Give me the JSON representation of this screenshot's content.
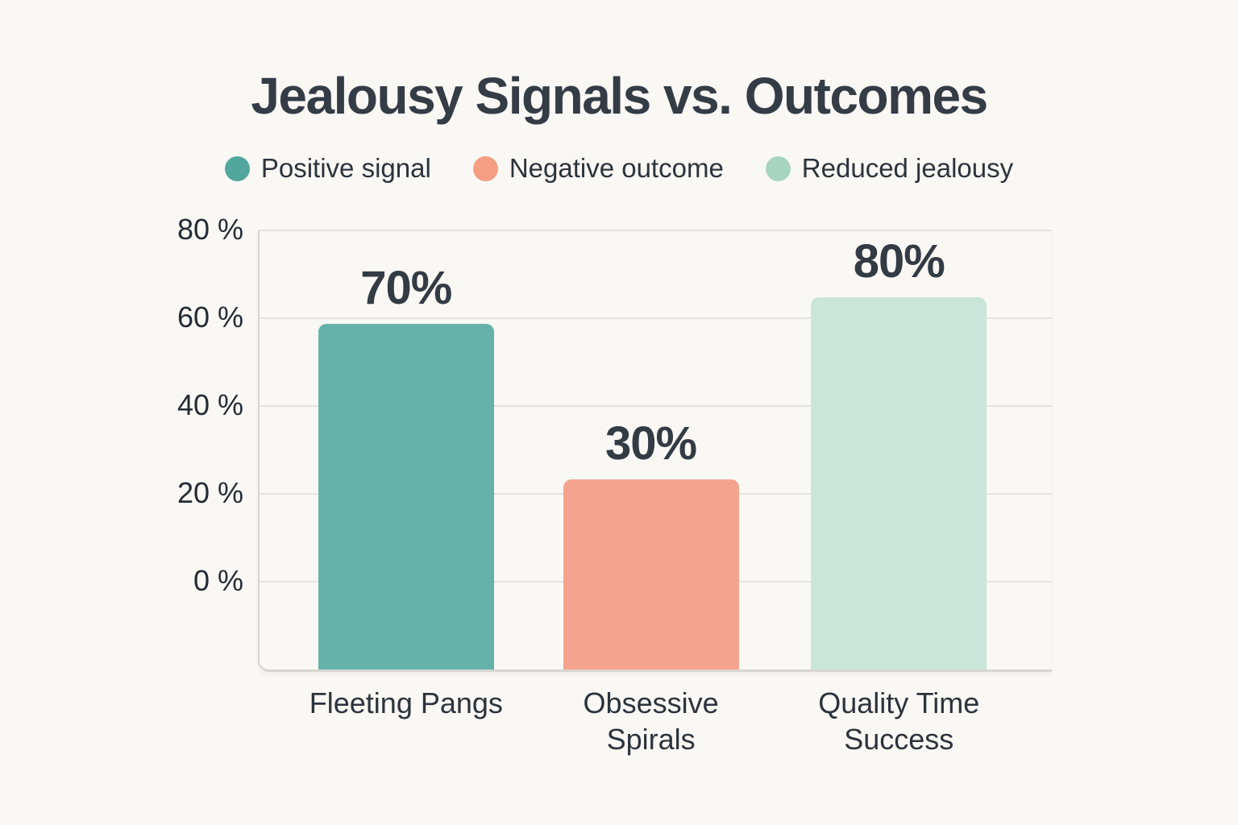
{
  "page": {
    "background_color": "#faf8f4"
  },
  "chart_data": {
    "type": "bar",
    "title": "Jealousy Signals vs. Outcomes",
    "categories": [
      "Fleeting Pangs",
      "Obsessive Spirals",
      "Quality Time Success"
    ],
    "category_lines": [
      [
        "Fleeting Pangs"
      ],
      [
        "Obsessive",
        "Spirals"
      ],
      [
        "Quality Time",
        "Success"
      ]
    ],
    "values": [
      70,
      30,
      80
    ],
    "value_labels": [
      "70%",
      "30%",
      "80%"
    ],
    "series": [
      {
        "name": "Positive signal",
        "legend_color": "#52a79d",
        "bar_color": "#64b2aa"
      },
      {
        "name": "Negative outcome",
        "legend_color": "#f59e83",
        "bar_color": "#f4a48e"
      },
      {
        "name": "Reduced jealousy",
        "legend_color": "#a8d5bf",
        "bar_color": "#c9e6da"
      }
    ],
    "xlabel": "",
    "ylabel": "",
    "y_ticks": [
      {
        "label": "80 %",
        "value": 80
      },
      {
        "label": "60 %",
        "value": 60
      },
      {
        "label": "40 %",
        "value": 40
      },
      {
        "label": "20 %",
        "value": 20
      },
      {
        "label": "0 %",
        "value": 0
      }
    ],
    "ylim": [
      0,
      80
    ],
    "grid": true,
    "legend_position": "top",
    "colors": {
      "background": "#faf8f4",
      "gridline": "#e4e3df",
      "axis_line": "#d7d6d1",
      "title_text": "#343c46",
      "tick_text": "#242c35"
    },
    "rendered": {
      "axis_min": -20,
      "axis_max": 80,
      "bar_drawn_values": [
        58.8,
        23.3,
        64.7
      ],
      "bar_center_fracs": [
        0.185,
        0.494,
        0.807
      ]
    }
  }
}
